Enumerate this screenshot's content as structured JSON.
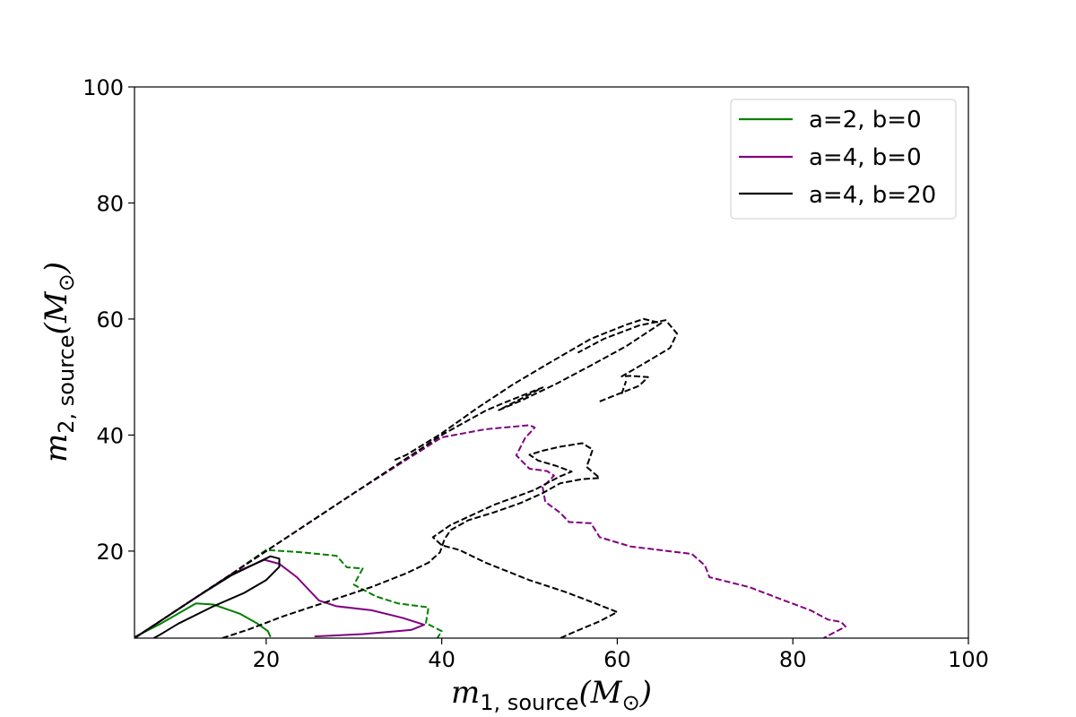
{
  "chart_data": {
    "type": "line",
    "xlabel": {
      "main": "m",
      "sub": "1, source",
      "unit": "(M",
      "sun": "⊙",
      "close": ")"
    },
    "ylabel": {
      "main": "m",
      "sub": "2, source",
      "unit": "(M",
      "sun": "⊙",
      "close": ")"
    },
    "xlim": [
      5,
      100
    ],
    "ylim": [
      5,
      100
    ],
    "xticks": [
      20,
      40,
      60,
      80,
      100
    ],
    "yticks": [
      20,
      40,
      60,
      80,
      100
    ],
    "xtick_labels": [
      "20",
      "40",
      "60",
      "80",
      "100"
    ],
    "ytick_labels": [
      "20",
      "40",
      "60",
      "80",
      "100"
    ],
    "grid": false,
    "legend_position": "top-right",
    "colors": {
      "green": "#008000",
      "purple": "#800080",
      "black": "#000000"
    },
    "series": [
      {
        "name": "a=2, b=0",
        "color": "#008000",
        "contours": [
          {
            "style": "solid",
            "points": [
              [
                5,
                5.2
              ],
              [
                8,
                7.5
              ],
              [
                12,
                11
              ],
              [
                14,
                10.8
              ],
              [
                17,
                9.2
              ],
              [
                19,
                7.5
              ],
              [
                20.2,
                6.2
              ],
              [
                20.5,
                5.2
              ]
            ]
          },
          {
            "style": "dashed",
            "points": [
              [
                5,
                5
              ],
              [
                8,
                8
              ],
              [
                12,
                12
              ],
              [
                16,
                16
              ],
              [
                20,
                20.2
              ],
              [
                24,
                19.8
              ],
              [
                28,
                19.2
              ],
              [
                29.2,
                17.2
              ],
              [
                31,
                17
              ],
              [
                30,
                14.2
              ],
              [
                32.5,
                12.2
              ],
              [
                35,
                11
              ],
              [
                38.5,
                10.3
              ],
              [
                38.2,
                7.6
              ],
              [
                40,
                6.2
              ],
              [
                39.5,
                5
              ]
            ]
          }
        ]
      },
      {
        "name": "a=4, b=0",
        "color": "#800080",
        "contours": [
          {
            "style": "solid",
            "points": [
              [
                5,
                5
              ],
              [
                8,
                8
              ],
              [
                12,
                12
              ],
              [
                16,
                16
              ],
              [
                19.8,
                18.5
              ],
              [
                21.5,
                17.8
              ],
              [
                23.5,
                15.5
              ],
              [
                26,
                11.5
              ],
              [
                28,
                10.5
              ],
              [
                32,
                9.8
              ],
              [
                35.5,
                8.5
              ],
              [
                38,
                7.3
              ],
              [
                36.5,
                6.4
              ],
              [
                31,
                5.7
              ],
              [
                25.5,
                5.3
              ]
            ]
          },
          {
            "style": "dashed",
            "points": [
              [
                5,
                5
              ],
              [
                10,
                10
              ],
              [
                20,
                20
              ],
              [
                30,
                30
              ],
              [
                40,
                39.6
              ],
              [
                45,
                41
              ],
              [
                50,
                41.7
              ],
              [
                50.6,
                41.3
              ],
              [
                49.5,
                39.5
              ],
              [
                48.5,
                36.5
              ],
              [
                50,
                34.2
              ],
              [
                52,
                33.8
              ],
              [
                52.8,
                33
              ],
              [
                51.5,
                31
              ],
              [
                51.8,
                28.5
              ],
              [
                53.5,
                26.6
              ],
              [
                54.5,
                25
              ],
              [
                57,
                24.8
              ],
              [
                58,
                22.4
              ],
              [
                61.5,
                20.8
              ],
              [
                68.5,
                19.5
              ],
              [
                70,
                17.5
              ],
              [
                70.5,
                15.5
              ],
              [
                75,
                13.8
              ],
              [
                79,
                11.5
              ],
              [
                82,
                9.8
              ],
              [
                84,
                8.2
              ],
              [
                85.5,
                7.8
              ],
              [
                86,
                7
              ],
              [
                84.5,
                5.8
              ],
              [
                83.5,
                5
              ]
            ]
          }
        ]
      },
      {
        "name": "a=4, b=20",
        "color": "#000000",
        "contours": [
          {
            "style": "solid",
            "points": [
              [
                5,
                5
              ],
              [
                8,
                8
              ],
              [
                12,
                12
              ],
              [
                16,
                15.8
              ],
              [
                20.5,
                19.1
              ],
              [
                21.5,
                18.7
              ],
              [
                21.5,
                17.3
              ],
              [
                20,
                15
              ],
              [
                17.5,
                12.8
              ],
              [
                14,
                10.5
              ],
              [
                10,
                7.5
              ],
              [
                7.8,
                5.5
              ],
              [
                7.2,
                5
              ]
            ]
          },
          {
            "style": "dashed",
            "points": [
              [
                15,
                5
              ],
              [
                18,
                6.5
              ],
              [
                22,
                8.8
              ],
              [
                27,
                11.3
              ],
              [
                32,
                13.8
              ],
              [
                36,
                16.2
              ],
              [
                38.5,
                18
              ],
              [
                39.8,
                19.8
              ],
              [
                40.3,
                22
              ],
              [
                41,
                23.6
              ],
              [
                43,
                25.3
              ],
              [
                46,
                26.7
              ],
              [
                49,
                28.3
              ],
              [
                51.5,
                30
              ],
              [
                53.5,
                31.7
              ],
              [
                56,
                32.4
              ],
              [
                58,
                32.6
              ],
              [
                56.5,
                34.5
              ],
              [
                57.2,
                37.5
              ],
              [
                56,
                38.6
              ],
              [
                53.5,
                38
              ],
              [
                51.5,
                37.3
              ],
              [
                50,
                36.6
              ],
              [
                51,
                35.6
              ],
              [
                53,
                34.7
              ],
              [
                54.8,
                33.7
              ],
              [
                53.5,
                32.9
              ],
              [
                50.5,
                30.5
              ],
              [
                46,
                28
              ],
              [
                41,
                24.5
              ],
              [
                39,
                22.4
              ],
              [
                40,
                21
              ],
              [
                42,
                20.2
              ],
              [
                45,
                18
              ],
              [
                50,
                15
              ],
              [
                54,
                13
              ],
              [
                57.5,
                11
              ],
              [
                60,
                9.5
              ],
              [
                58,
                7.9
              ],
              [
                55,
                6
              ],
              [
                53.5,
                5
              ]
            ]
          },
          {
            "style": "dashed",
            "points": [
              [
                5,
                5
              ],
              [
                10,
                10
              ],
              [
                15,
                15
              ],
              [
                20,
                20
              ],
              [
                25,
                25
              ],
              [
                30,
                30
              ],
              [
                35,
                35
              ],
              [
                40,
                40
              ],
              [
                45,
                44.2
              ],
              [
                47,
                45.5
              ],
              [
                51.5,
                48.2
              ],
              [
                50.5,
                47.4
              ],
              [
                46.5,
                44.3
              ],
              [
                49,
                45.9
              ],
              [
                53,
                48.8
              ],
              [
                57,
                52
              ],
              [
                61,
                55.3
              ],
              [
                65,
                59.3
              ],
              [
                63,
                60
              ],
              [
                61,
                59
              ],
              [
                57,
                56.6
              ],
              [
                52,
                52.2
              ],
              [
                48,
                48.6
              ],
              [
                44,
                44.6
              ],
              [
                40,
                40.3
              ],
              [
                36,
                36.6
              ],
              [
                34.5,
                35.6
              ]
            ]
          },
          {
            "style": "dashed",
            "points": [
              [
                58,
                45.8
              ],
              [
                60,
                47
              ],
              [
                62.5,
                48.5
              ],
              [
                63.5,
                50
              ],
              [
                61.5,
                50.2
              ],
              [
                60.5,
                50.1
              ],
              [
                63,
                52.3
              ],
              [
                66,
                55
              ],
              [
                66.8,
                57.5
              ],
              [
                65.5,
                59.8
              ],
              [
                62.5,
                58.9
              ],
              [
                58.5,
                56.6
              ],
              [
                55.5,
                54.2
              ]
            ]
          },
          {
            "style": "dashed",
            "points": [
              [
                60.5,
                47.1
              ],
              [
                61,
                49.3
              ]
            ]
          }
        ]
      }
    ]
  }
}
